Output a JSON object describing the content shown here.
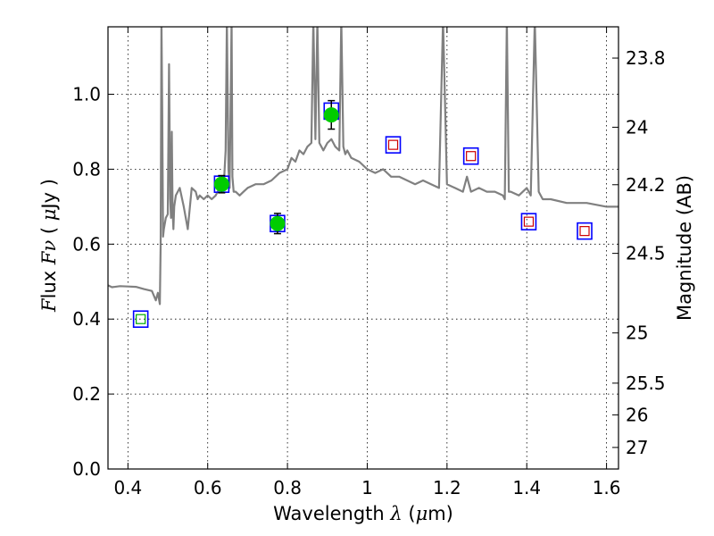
{
  "chart_data": {
    "type": "scatter",
    "xlabel": "Wavelength  λ (μm)",
    "ylabel": "Flux  Fν  ( μJy )",
    "y2label": "Magnitude (AB)",
    "xlim": [
      0.35,
      1.63
    ],
    "ylim": [
      0.0,
      1.18
    ],
    "grid": true,
    "x_ticks": [
      {
        "value": 0.4,
        "label": "0.4"
      },
      {
        "value": 0.6,
        "label": "0.6"
      },
      {
        "value": 0.8,
        "label": "0.8"
      },
      {
        "value": 1.0,
        "label": "1"
      },
      {
        "value": 1.2,
        "label": "1.2"
      },
      {
        "value": 1.4,
        "label": "1.4"
      },
      {
        "value": 1.6,
        "label": "1.6"
      }
    ],
    "y_ticks": [
      {
        "value": 0.0,
        "label": "0.0"
      },
      {
        "value": 0.2,
        "label": "0.2"
      },
      {
        "value": 0.4,
        "label": "0.4"
      },
      {
        "value": 0.6,
        "label": "0.6"
      },
      {
        "value": 0.8,
        "label": "0.8"
      },
      {
        "value": 1.0,
        "label": "1.0"
      }
    ],
    "y2_ticks": [
      {
        "label": "23.8",
        "flux": 1.0965
      },
      {
        "label": "24",
        "flux": 0.912
      },
      {
        "label": "24.2",
        "flux": 0.7586
      },
      {
        "label": "24.5",
        "flux": 0.5754
      },
      {
        "label": "25",
        "flux": 0.3631
      },
      {
        "label": "25.5",
        "flux": 0.2291
      },
      {
        "label": "26",
        "flux": 0.1445
      },
      {
        "label": "27",
        "flux": 0.0575
      }
    ],
    "series": [
      {
        "kind": "model_spectrum",
        "color": "#808080",
        "x": [
          0.35,
          0.36,
          0.38,
          0.4,
          0.42,
          0.44,
          0.46,
          0.47,
          0.475,
          0.48,
          0.482,
          0.484,
          0.486,
          0.488,
          0.49,
          0.495,
          0.5,
          0.503,
          0.506,
          0.508,
          0.51,
          0.512,
          0.514,
          0.516,
          0.52,
          0.53,
          0.54,
          0.55,
          0.56,
          0.57,
          0.575,
          0.58,
          0.59,
          0.6,
          0.61,
          0.62,
          0.63,
          0.64,
          0.645,
          0.648,
          0.652,
          0.655,
          0.66,
          0.662,
          0.665,
          0.67,
          0.68,
          0.69,
          0.7,
          0.72,
          0.74,
          0.76,
          0.78,
          0.8,
          0.81,
          0.82,
          0.83,
          0.84,
          0.85,
          0.86,
          0.865,
          0.87,
          0.875,
          0.88,
          0.885,
          0.89,
          0.9,
          0.91,
          0.92,
          0.93,
          0.935,
          0.94,
          0.945,
          0.95,
          0.96,
          0.98,
          1.0,
          1.02,
          1.04,
          1.06,
          1.08,
          1.1,
          1.12,
          1.14,
          1.16,
          1.18,
          1.19,
          1.2,
          1.22,
          1.24,
          1.25,
          1.26,
          1.28,
          1.3,
          1.32,
          1.34,
          1.345,
          1.35,
          1.355,
          1.36,
          1.38,
          1.4,
          1.41,
          1.42,
          1.43,
          1.44,
          1.46,
          1.5,
          1.55,
          1.6,
          1.63
        ],
        "y": [
          0.49,
          0.485,
          0.488,
          0.487,
          0.486,
          0.48,
          0.475,
          0.45,
          0.47,
          0.44,
          0.6,
          1.2,
          0.95,
          0.62,
          0.64,
          0.67,
          0.68,
          1.08,
          0.72,
          0.67,
          0.9,
          0.69,
          0.64,
          0.7,
          0.73,
          0.75,
          0.7,
          0.64,
          0.75,
          0.74,
          0.72,
          0.73,
          0.72,
          0.73,
          0.72,
          0.73,
          0.75,
          0.75,
          0.85,
          1.2,
          0.8,
          0.75,
          1.2,
          0.78,
          0.74,
          0.74,
          0.73,
          0.74,
          0.75,
          0.76,
          0.76,
          0.77,
          0.79,
          0.8,
          0.83,
          0.82,
          0.85,
          0.84,
          0.86,
          0.87,
          1.2,
          0.88,
          1.2,
          0.87,
          0.86,
          0.85,
          0.87,
          0.88,
          0.86,
          0.85,
          1.2,
          0.86,
          0.84,
          0.85,
          0.83,
          0.82,
          0.8,
          0.79,
          0.8,
          0.78,
          0.78,
          0.77,
          0.76,
          0.77,
          0.76,
          0.75,
          1.2,
          0.76,
          0.75,
          0.74,
          0.78,
          0.74,
          0.75,
          0.74,
          0.74,
          0.73,
          0.72,
          1.2,
          0.74,
          0.74,
          0.73,
          0.75,
          0.73,
          1.2,
          0.74,
          0.72,
          0.72,
          0.71,
          0.71,
          0.7,
          0.7
        ]
      },
      {
        "kind": "model_photometry",
        "marker": "square",
        "color": "#0000ff",
        "x": [
          0.432,
          0.635,
          0.775,
          0.91,
          1.065,
          1.26,
          1.405,
          1.545
        ],
        "y": [
          0.4,
          0.76,
          0.655,
          0.955,
          0.865,
          0.835,
          0.66,
          0.635
        ]
      },
      {
        "kind": "observed_photometry",
        "marker": "circle",
        "color": "#00cc00",
        "x": [
          0.635,
          0.775,
          0.91
        ],
        "y": [
          0.76,
          0.655,
          0.945
        ],
        "yerr": [
          0.023,
          0.027,
          0.038
        ]
      },
      {
        "kind": "upper_limits",
        "marker": "small-square",
        "color": "#cc0000",
        "x": [
          1.065,
          1.26,
          1.405,
          1.545
        ],
        "y": [
          0.865,
          0.835,
          0.66,
          0.635
        ]
      },
      {
        "kind": "faint_detection",
        "marker": "small-square",
        "color": "#00aa00",
        "x": [
          0.432
        ],
        "y": [
          0.4
        ]
      }
    ]
  }
}
